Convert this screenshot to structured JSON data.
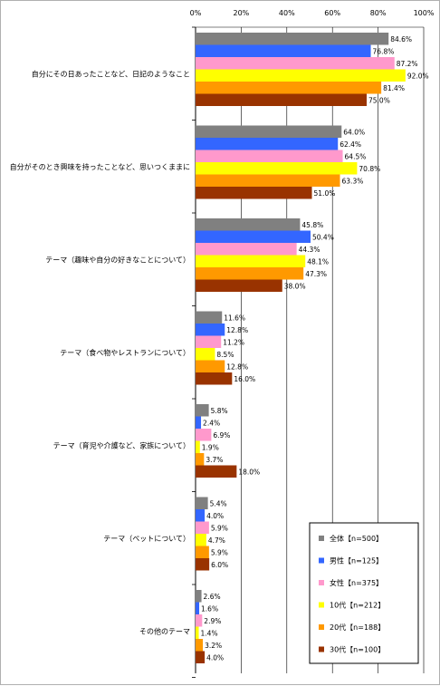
{
  "chart_data": {
    "type": "bar",
    "orientation": "horizontal",
    "xlim": [
      0,
      100
    ],
    "xticks": [
      "0%",
      "20%",
      "40%",
      "60%",
      "80%",
      "100%"
    ],
    "grid": true,
    "legend_position": "bottom-right",
    "categories": [
      "自分にその日あったことなど、日記のようなこと",
      "自分がそのとき興味を持ったことなど、思いつくままに",
      "テーマ（趣味や自分の好きなことについて）",
      "テーマ（食べ物やレストランについて）",
      "テーマ（育児や介護など、家族について）",
      "テーマ（ペットについて）",
      "その他のテーマ"
    ],
    "series": [
      {
        "name": "全体【n=500】",
        "color": "#808080",
        "values": [
          84.6,
          64.0,
          45.8,
          11.6,
          5.8,
          5.4,
          2.6
        ],
        "labels": [
          "84.6%",
          "64.0%",
          "45.8%",
          "11.6%",
          "5.8%",
          "5.4%",
          "2.6%"
        ]
      },
      {
        "name": "男性【n=125】",
        "color": "#3366ff",
        "values": [
          76.8,
          62.4,
          50.4,
          12.8,
          2.4,
          4.0,
          1.6
        ],
        "labels": [
          "76.8%",
          "62.4%",
          "50.4%",
          "12.8%",
          "2.4%",
          "4.0%",
          "1.6%"
        ]
      },
      {
        "name": "女性【n=375】",
        "color": "#ff99cc",
        "values": [
          87.2,
          64.5,
          44.3,
          11.2,
          6.9,
          5.9,
          2.9
        ],
        "labels": [
          "87.2%",
          "64.5%",
          "44.3%",
          "11.2%",
          "6.9%",
          "5.9%",
          "2.9%"
        ]
      },
      {
        "name": "10代【n=212】",
        "color": "#ffff00",
        "values": [
          92.0,
          70.8,
          48.1,
          8.5,
          1.9,
          4.7,
          1.4
        ],
        "labels": [
          "92.0%",
          "70.8%",
          "48.1%",
          "8.5%",
          "1.9%",
          "4.7%",
          "1.4%"
        ]
      },
      {
        "name": "20代【n=188】",
        "color": "#ff9900",
        "values": [
          81.4,
          63.3,
          47.3,
          12.8,
          3.7,
          5.9,
          3.2
        ],
        "labels": [
          "81.4%",
          "63.3%",
          "47.3%",
          "12.8%",
          "3.7%",
          "5.9%",
          "3.2%"
        ]
      },
      {
        "name": "30代【n=100】",
        "color": "#993300",
        "values": [
          75.0,
          51.0,
          38.0,
          16.0,
          18.0,
          6.0,
          4.0
        ],
        "labels": [
          "75.0%",
          "51.0%",
          "38.0%",
          "16.0%",
          "18.0%",
          "6.0%",
          "4.0%"
        ]
      }
    ]
  }
}
